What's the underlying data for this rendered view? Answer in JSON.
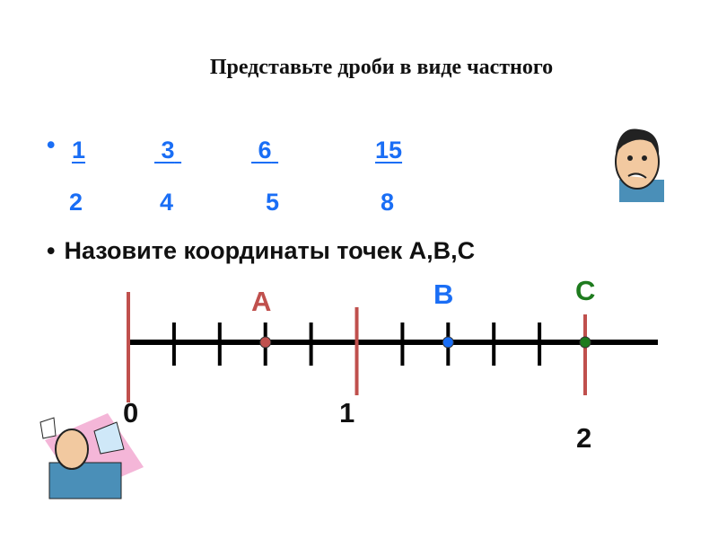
{
  "slide": {
    "title": "Представьте дроби в виде частного",
    "fractions": [
      {
        "numerator": "1",
        "denominator": "2"
      },
      {
        "numerator": "3",
        "denominator": "4"
      },
      {
        "numerator": "6",
        "denominator": "5"
      },
      {
        "numerator": "15",
        "denominator": "8"
      }
    ],
    "question": "Назовите координаты точек А,В,С",
    "number_line": {
      "labels": [
        "0",
        "1",
        "2"
      ],
      "subdivisions_per_unit": 5,
      "points": [
        {
          "name": "А",
          "value": 0.6,
          "color": "#c0504d"
        },
        {
          "name": "В",
          "value": 1.4,
          "color": "#1a6ef5"
        },
        {
          "name": "С",
          "value": 2,
          "color": "#1e7b1e"
        }
      ]
    },
    "colors": {
      "fraction_text": "#1a6ef5",
      "unit_marks": "#c0504d"
    }
  }
}
